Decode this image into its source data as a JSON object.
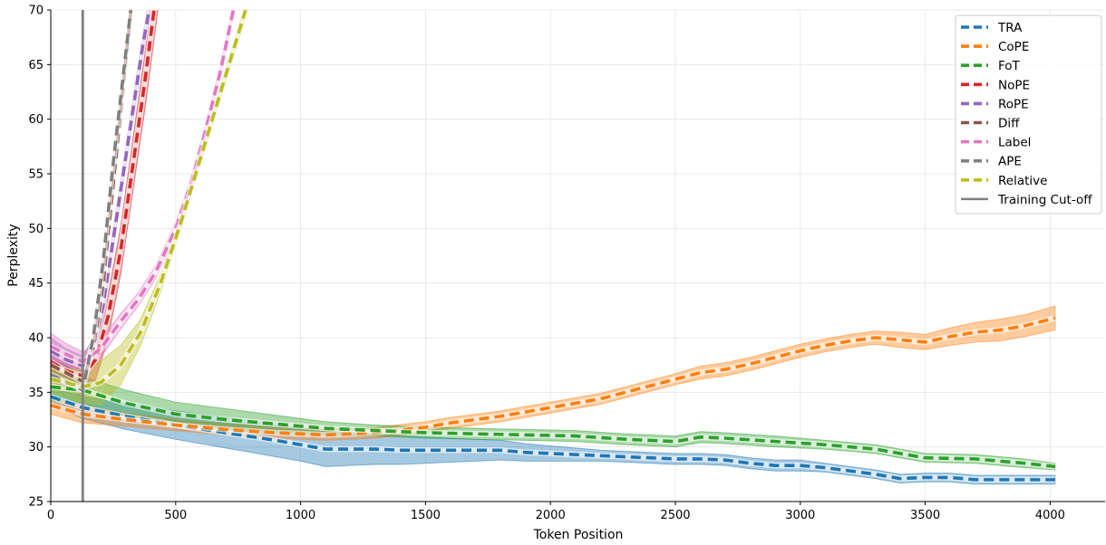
{
  "chart_data": {
    "type": "line",
    "title": "",
    "xlabel": "Token Position",
    "ylabel": "Perplexity",
    "xlim": [
      0,
      4220
    ],
    "ylim": [
      25,
      70
    ],
    "xticks": [
      0,
      500,
      1000,
      1500,
      2000,
      2500,
      3000,
      3500,
      4000
    ],
    "yticks": [
      25,
      30,
      35,
      40,
      45,
      50,
      55,
      60,
      65,
      70
    ],
    "grid": true,
    "legend_position": "top-right",
    "vline": {
      "x": 128,
      "name": "Training Cut-off",
      "color": "#7f7f7f"
    },
    "series": [
      {
        "name": "TRA",
        "color": "#1f77b4",
        "x": [
          0,
          128,
          300,
          500,
          700,
          900,
          1000,
          1100,
          1200,
          1300,
          1400,
          1500,
          1600,
          1700,
          1800,
          1900,
          2000,
          2100,
          2200,
          2300,
          2400,
          2500,
          2600,
          2700,
          2800,
          2900,
          3000,
          3100,
          3200,
          3300,
          3400,
          3500,
          3600,
          3700,
          3800,
          3900,
          4020
        ],
        "y": [
          34.6,
          33.6,
          32.8,
          32.0,
          31.3,
          30.6,
          30.2,
          29.8,
          29.8,
          29.8,
          29.7,
          29.7,
          29.7,
          29.7,
          29.7,
          29.5,
          29.4,
          29.3,
          29.2,
          29.1,
          29.0,
          28.9,
          28.9,
          28.8,
          28.5,
          28.3,
          28.3,
          28.1,
          27.8,
          27.5,
          27.1,
          27.2,
          27.2,
          27.0,
          27.0,
          27.0,
          27.0
        ],
        "band": [
          0.8,
          1.0,
          1.2,
          1.3,
          1.4,
          1.5,
          1.5,
          1.6,
          1.5,
          1.4,
          1.3,
          1.2,
          1.1,
          1.0,
          0.9,
          0.8,
          0.7,
          0.6,
          0.5,
          0.5,
          0.5,
          0.5,
          0.5,
          0.5,
          0.5,
          0.5,
          0.5,
          0.4,
          0.4,
          0.4,
          0.4,
          0.4,
          0.4,
          0.4,
          0.4,
          0.4,
          0.4
        ]
      },
      {
        "name": "CoPE",
        "color": "#ff7f0e",
        "x": [
          0,
          128,
          300,
          500,
          700,
          900,
          1100,
          1300,
          1500,
          1600,
          1700,
          1800,
          1900,
          2000,
          2100,
          2200,
          2300,
          2400,
          2500,
          2600,
          2700,
          2800,
          2900,
          3000,
          3100,
          3200,
          3300,
          3400,
          3500,
          3600,
          3700,
          3800,
          3900,
          4020
        ],
        "y": [
          33.8,
          33.0,
          32.5,
          32.0,
          31.6,
          31.3,
          31.1,
          31.3,
          31.8,
          32.2,
          32.5,
          32.8,
          33.2,
          33.6,
          34.0,
          34.4,
          35.0,
          35.6,
          36.2,
          36.8,
          37.1,
          37.6,
          38.2,
          38.8,
          39.3,
          39.7,
          40.0,
          39.8,
          39.6,
          40.1,
          40.5,
          40.7,
          41.1,
          41.8
        ],
        "band": [
          0.8,
          0.8,
          0.6,
          0.5,
          0.5,
          0.5,
          0.5,
          0.5,
          0.5,
          0.5,
          0.5,
          0.5,
          0.5,
          0.5,
          0.5,
          0.5,
          0.5,
          0.5,
          0.5,
          0.6,
          0.6,
          0.6,
          0.6,
          0.6,
          0.6,
          0.6,
          0.6,
          0.7,
          0.7,
          0.8,
          0.9,
          1.0,
          1.0,
          1.1
        ]
      },
      {
        "name": "FoT",
        "color": "#2ca02c",
        "x": [
          0,
          128,
          300,
          500,
          700,
          900,
          1100,
          1300,
          1500,
          1700,
          1900,
          2100,
          2300,
          2500,
          2600,
          2700,
          2900,
          3100,
          3300,
          3500,
          3700,
          3900,
          4020
        ],
        "y": [
          35.5,
          35.2,
          34.0,
          33.0,
          32.5,
          32.1,
          31.7,
          31.5,
          31.3,
          31.2,
          31.1,
          31.0,
          30.7,
          30.5,
          30.9,
          30.8,
          30.5,
          30.2,
          29.8,
          29.0,
          28.9,
          28.5,
          28.2
        ],
        "band": [
          1.2,
          1.2,
          1.2,
          1.1,
          1.0,
          0.8,
          0.6,
          0.5,
          0.5,
          0.5,
          0.5,
          0.5,
          0.5,
          0.5,
          0.5,
          0.5,
          0.5,
          0.4,
          0.4,
          0.4,
          0.4,
          0.4,
          0.3
        ]
      },
      {
        "name": "NoPE",
        "color": "#d62728",
        "x": [
          0,
          60,
          128,
          180,
          230,
          280,
          330,
          380,
          430
        ],
        "y": [
          37.8,
          37.0,
          36.5,
          38.0,
          42.0,
          48.0,
          56.0,
          64.0,
          73.0
        ],
        "band": [
          1.5,
          1.5,
          1.5,
          1.8,
          2.0,
          2.2,
          2.4,
          2.6,
          2.8
        ]
      },
      {
        "name": "RoPE",
        "color": "#9467bd",
        "x": [
          0,
          60,
          128,
          170,
          210,
          250,
          290,
          330,
          370,
          410
        ],
        "y": [
          38.8,
          38.0,
          37.4,
          39.0,
          43.0,
          49.0,
          55.0,
          61.0,
          67.0,
          72.0
        ],
        "band": [
          1.2,
          1.0,
          0.9,
          1.0,
          1.0,
          1.0,
          1.0,
          1.0,
          1.0,
          1.0
        ]
      },
      {
        "name": "Diff",
        "color": "#8c564b",
        "x": [
          0,
          60,
          128,
          170,
          210,
          250,
          290,
          330
        ],
        "y": [
          37.5,
          36.8,
          36.0,
          39.0,
          45.0,
          54.0,
          63.0,
          72.0
        ],
        "band": [
          0.6,
          0.6,
          0.6,
          0.6,
          0.6,
          0.6,
          0.6,
          0.6
        ]
      },
      {
        "name": "Label",
        "color": "#e377c2",
        "x": [
          0,
          60,
          128,
          200,
          280,
          350,
          420,
          500,
          560,
          620,
          680,
          740
        ],
        "y": [
          39.2,
          38.5,
          37.8,
          39.0,
          41.5,
          43.5,
          46.0,
          50.0,
          54.0,
          59.0,
          64.5,
          71.0
        ],
        "band": [
          1.2,
          1.0,
          0.9,
          0.8,
          0.7,
          0.6,
          0.6,
          0.6,
          0.6,
          0.6,
          0.6,
          0.6
        ]
      },
      {
        "name": "APE",
        "color": "#7f7f7f",
        "x": [
          0,
          60,
          128,
          170,
          210,
          250,
          290,
          330
        ],
        "y": [
          36.6,
          36.0,
          35.2,
          40.0,
          47.0,
          56.0,
          64.0,
          72.0
        ],
        "band": [
          0.6,
          0.6,
          0.6,
          0.6,
          0.6,
          0.6,
          0.6,
          0.6
        ]
      },
      {
        "name": "Relative",
        "color": "#bcbd22",
        "x": [
          0,
          60,
          128,
          200,
          280,
          360,
          440,
          520,
          600,
          680,
          780
        ],
        "y": [
          36.2,
          35.9,
          35.5,
          35.9,
          37.5,
          40.5,
          45.0,
          50.5,
          56.5,
          62.5,
          70.0
        ],
        "band": [
          1.2,
          1.3,
          1.5,
          2.0,
          1.8,
          1.2,
          0.8,
          0.6,
          0.6,
          0.6,
          0.6
        ]
      }
    ]
  }
}
